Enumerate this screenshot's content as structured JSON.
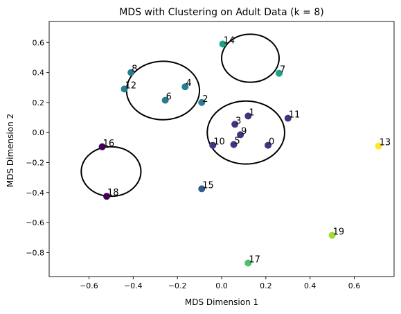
{
  "chart_data": {
    "type": "scatter",
    "title": "MDS with Clustering on Adult Data (k = 8)",
    "xlabel": "MDS Dimension 1",
    "ylabel": "MDS Dimension 2",
    "xlim": [
      -0.78,
      0.78
    ],
    "ylim": [
      -0.96,
      0.74
    ],
    "xticks": [
      -0.6,
      -0.4,
      -0.2,
      0.0,
      0.2,
      0.4,
      0.6
    ],
    "xtick_labels": [
      "−0.6",
      "−0.4",
      "−0.2",
      "0.0",
      "0.2",
      "0.4",
      "0.6"
    ],
    "yticks": [
      -0.8,
      -0.6,
      -0.4,
      -0.2,
      0.0,
      0.2,
      0.4,
      0.6
    ],
    "ytick_labels": [
      "−0.8",
      "−0.6",
      "−0.4",
      "−0.2",
      "0.0",
      "0.2",
      "0.4",
      "0.6"
    ],
    "grid": false,
    "legend": "none",
    "colors": {
      "c0": "#440154",
      "c1": "#46327e",
      "c2": "#365c8d",
      "c3": "#277f8e",
      "c4": "#1fa187",
      "c5": "#4ac16d",
      "c6": "#a0da39",
      "c7": "#fde725"
    },
    "points": [
      {
        "label": "0",
        "x": 0.21,
        "y": -0.085,
        "color": "#46327e"
      },
      {
        "label": "1",
        "x": 0.12,
        "y": 0.11,
        "color": "#46327e"
      },
      {
        "label": "2",
        "x": -0.09,
        "y": 0.2,
        "color": "#277f8e"
      },
      {
        "label": "3",
        "x": 0.06,
        "y": 0.055,
        "color": "#46327e"
      },
      {
        "label": "4",
        "x": -0.165,
        "y": 0.305,
        "color": "#277f8e"
      },
      {
        "label": "5",
        "x": 0.055,
        "y": -0.08,
        "color": "#46327e"
      },
      {
        "label": "6",
        "x": -0.255,
        "y": 0.215,
        "color": "#277f8e"
      },
      {
        "label": "7",
        "x": 0.26,
        "y": 0.395,
        "color": "#1fa187"
      },
      {
        "label": "8",
        "x": -0.41,
        "y": 0.4,
        "color": "#277f8e"
      },
      {
        "label": "9",
        "x": 0.085,
        "y": -0.015,
        "color": "#46327e"
      },
      {
        "label": "10",
        "x": -0.04,
        "y": -0.085,
        "color": "#46327e"
      },
      {
        "label": "11",
        "x": 0.3,
        "y": 0.095,
        "color": "#46327e"
      },
      {
        "label": "12",
        "x": -0.44,
        "y": 0.29,
        "color": "#277f8e"
      },
      {
        "label": "13",
        "x": 0.71,
        "y": -0.09,
        "color": "#fde725"
      },
      {
        "label": "14",
        "x": 0.005,
        "y": 0.59,
        "color": "#1fa187"
      },
      {
        "label": "15",
        "x": -0.09,
        "y": -0.375,
        "color": "#365c8d"
      },
      {
        "label": "16",
        "x": -0.54,
        "y": -0.095,
        "color": "#440154"
      },
      {
        "label": "17",
        "x": 0.12,
        "y": -0.87,
        "color": "#4ac16d"
      },
      {
        "label": "18",
        "x": -0.52,
        "y": -0.425,
        "color": "#440154"
      },
      {
        "label": "19",
        "x": 0.5,
        "y": -0.685,
        "color": "#a0da39"
      }
    ],
    "ellipses": [
      {
        "cx": -0.265,
        "cy": 0.28,
        "rx": 0.165,
        "ry": 0.195
      },
      {
        "cx": 0.13,
        "cy": 0.495,
        "rx": 0.13,
        "ry": 0.16
      },
      {
        "cx": 0.11,
        "cy": 0.0,
        "rx": 0.175,
        "ry": 0.21
      },
      {
        "cx": -0.5,
        "cy": -0.26,
        "rx": 0.135,
        "ry": 0.165
      }
    ]
  }
}
